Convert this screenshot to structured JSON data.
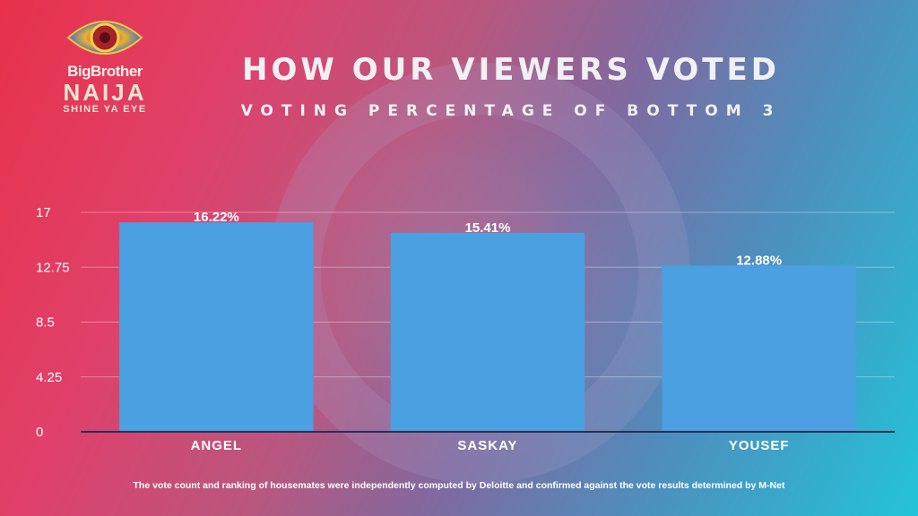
{
  "header": {
    "title": "HOW OUR VIEWERS VOTED",
    "subtitle": "VOTING PERCENTAGE OF BOTTOM 3"
  },
  "logo": {
    "line1": "BigBrother",
    "line2": "NAIJA",
    "line3": "SHINE YA EYE",
    "icon": "eye-logo-icon"
  },
  "footnote": "The vote count and ranking of housemates were independently computed by Deloitte and confirmed against the vote results determined by M-Net",
  "chart_data": {
    "type": "bar",
    "title": "",
    "xlabel": "",
    "ylabel": "",
    "categories": [
      "ANGEL",
      "SASKAY",
      "YOUSEF"
    ],
    "values": [
      16.22,
      15.41,
      12.88
    ],
    "data_labels": [
      "16.22%",
      "15.41%",
      "12.88%"
    ],
    "ylim": [
      0,
      17
    ],
    "yticks": [
      0,
      4.25,
      8.5,
      12.75,
      17
    ],
    "ytick_labels": [
      "0",
      "4.25",
      "8.5",
      "12.75",
      "17"
    ],
    "grid": true,
    "legend": "none",
    "colors": {
      "bar": "#4aa0e0",
      "grid": "rgba(255,255,255,0.35)",
      "axis": "#2a2f55",
      "text": "#ffffff"
    }
  }
}
